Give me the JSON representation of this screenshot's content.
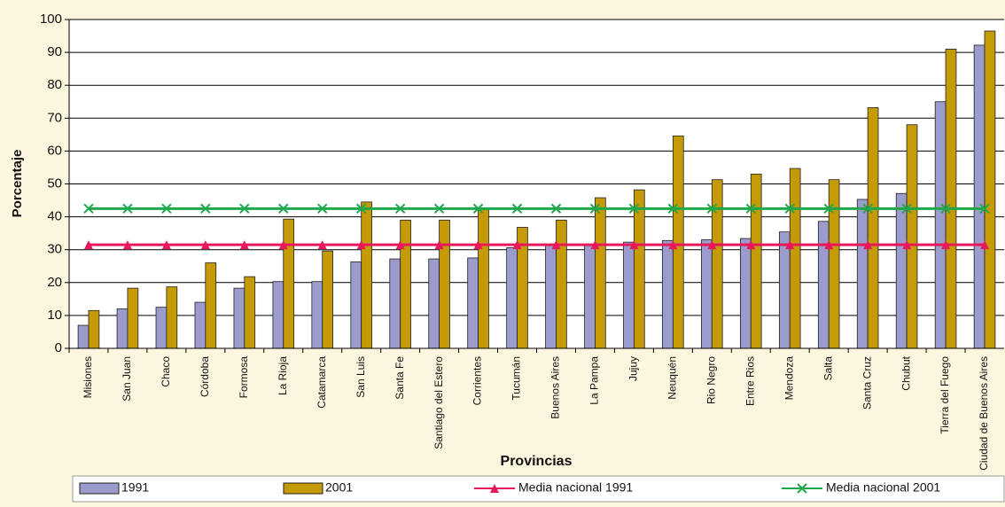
{
  "chart_data": {
    "type": "bar",
    "x_label": "Provincias",
    "y_label": "Porcentaje",
    "categories": [
      "Misiones",
      "San Juan",
      "Chaco",
      "Córdoba",
      "Formosa",
      "La Rioja",
      "Catamarca",
      "San Luis",
      "Santa Fe",
      "Santiago del Estero",
      "Corrientes",
      "Tucumán",
      "Buenos Aires",
      "La Pampa",
      "Jujuy",
      "Neuquén",
      "Rio Negro",
      "Entre Rios",
      "Mendoza",
      "Salta",
      "Santa Cruz",
      "Chubut",
      "Tierra del Fuego",
      "Ciudad de Buenos Aires"
    ],
    "series": [
      {
        "name": "1991",
        "color": "#9c9ccc",
        "values": [
          7,
          12,
          12.5,
          14,
          18.3,
          20.3,
          20.3,
          26.3,
          27.2,
          27.2,
          27.5,
          30.6,
          31.3,
          31.3,
          32.3,
          32.8,
          33,
          33.4,
          35.4,
          38.6,
          45.3,
          47.1,
          75,
          92.2
        ]
      },
      {
        "name": "2001",
        "color": "#c49a06",
        "values": [
          11.5,
          18.3,
          18.7,
          26,
          21.8,
          39.3,
          29.6,
          44.5,
          39,
          39,
          42.5,
          36.8,
          39,
          45.8,
          48.2,
          64.6,
          51.3,
          53,
          54.7,
          51.3,
          73.2,
          68,
          91,
          96.5
        ]
      }
    ],
    "lines": [
      {
        "name": "Media nacional 1991",
        "color": "#e8185a",
        "marker": "triangle",
        "value": 31.5
      },
      {
        "name": "Media nacional 2001",
        "color": "#1fa84a",
        "marker": "x",
        "value": 42.5
      }
    ],
    "ylim": [
      0,
      100
    ],
    "yticks": [
      0,
      10,
      20,
      30,
      40,
      50,
      60,
      70,
      80,
      90,
      100
    ],
    "grid": true
  }
}
